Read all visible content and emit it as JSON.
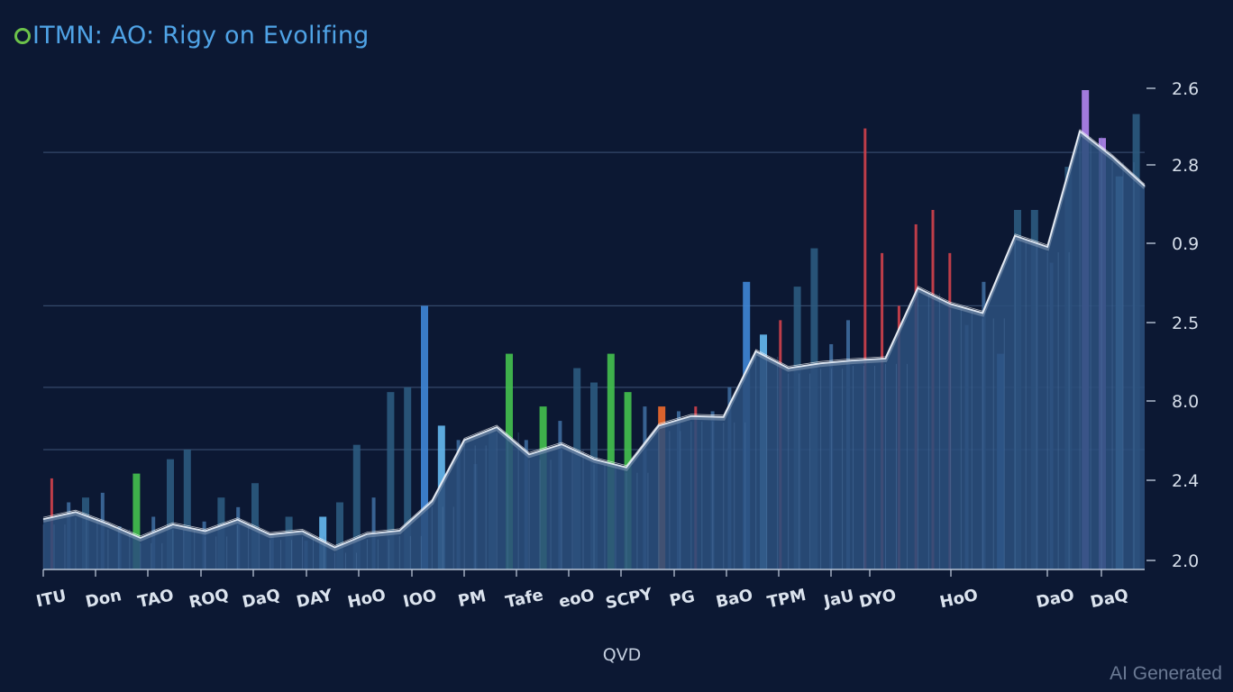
{
  "title": "ITMN: AO: Rigy on Evolifing",
  "watermark": "AI Generated",
  "chart_data": {
    "type": "bar",
    "title": "ITMN: AO: Rigy on Evolifing",
    "xlabel": "QVD",
    "ylabel": "",
    "y_tick_labels": [
      "2.6",
      "2.8",
      "0.9",
      "2.5",
      "8.0",
      "2.4",
      "2.0"
    ],
    "ylim": [
      0,
      100
    ],
    "x_tick_labels": [
      "ITU",
      "Don",
      "TAO",
      "ROQ",
      "DaQ",
      "DAY",
      "HoO",
      "IOO",
      "PM",
      "Tafe",
      "eoO",
      "SCPY",
      "PG",
      "BaO",
      "TPM",
      "JaU",
      "DYO",
      "HoO",
      "DaO",
      "DaQ"
    ],
    "gridlines": [
      25,
      38,
      55,
      87
    ],
    "colors": {
      "background": "#0c1833",
      "area_fill": "#2b4e7c",
      "bar_fill": "#3d6a9c",
      "bar_tall": "#2b5a7e",
      "line": "#dfe7f2",
      "accent_red": "#d2414b",
      "accent_green": "#44c14e",
      "accent_blue": "#3f86d6",
      "accent_orange": "#ef6a2c",
      "accent_cyan": "#65b9ef",
      "accent_purple": "#b385ef"
    },
    "trend_series": {
      "name": "trend",
      "values": [
        10.5,
        12.0,
        9.5,
        6.6,
        9.4,
        8.0,
        10.4,
        7.3,
        8.0,
        4.6,
        7.4,
        8.1,
        14.2,
        27.0,
        29.7,
        24.0,
        26.1,
        23.0,
        21.3,
        30.0,
        32.0,
        31.8,
        45.5,
        42.0,
        43.0,
        43.6,
        44.0,
        58.7,
        55.4,
        53.5,
        69.6,
        67.3,
        91.4,
        86.1,
        80.0
      ]
    },
    "bars": [
      {
        "value": 19,
        "color": "red"
      },
      {
        "value": 14,
        "color": "bar"
      },
      {
        "value": 15,
        "color": "tall"
      },
      {
        "value": 16,
        "color": "bar"
      },
      {
        "value": 9,
        "color": "bar"
      },
      {
        "value": 20,
        "color": "green"
      },
      {
        "value": 11,
        "color": "bar"
      },
      {
        "value": 23,
        "color": "tall"
      },
      {
        "value": 25,
        "color": "tall"
      },
      {
        "value": 10,
        "color": "bar"
      },
      {
        "value": 15,
        "color": "tall"
      },
      {
        "value": 13,
        "color": "bar"
      },
      {
        "value": 18,
        "color": "tall"
      },
      {
        "value": 7,
        "color": "bar"
      },
      {
        "value": 11,
        "color": "tall"
      },
      {
        "value": 6,
        "color": "bar"
      },
      {
        "value": 11,
        "color": "cyan"
      },
      {
        "value": 14,
        "color": "tall"
      },
      {
        "value": 26,
        "color": "tall"
      },
      {
        "value": 15,
        "color": "bar"
      },
      {
        "value": 37,
        "color": "tall"
      },
      {
        "value": 38,
        "color": "tall"
      },
      {
        "value": 55,
        "color": "blue"
      },
      {
        "value": 30,
        "color": "cyan"
      },
      {
        "value": 27,
        "color": "bar"
      },
      {
        "value": 22,
        "color": "bar"
      },
      {
        "value": 29,
        "color": "tall"
      },
      {
        "value": 45,
        "color": "green"
      },
      {
        "value": 27,
        "color": "bar"
      },
      {
        "value": 34,
        "color": "green"
      },
      {
        "value": 31,
        "color": "bar"
      },
      {
        "value": 42,
        "color": "tall"
      },
      {
        "value": 39,
        "color": "tall"
      },
      {
        "value": 45,
        "color": "green"
      },
      {
        "value": 37,
        "color": "green"
      },
      {
        "value": 34,
        "color": "bar"
      },
      {
        "value": 34,
        "color": "orange"
      },
      {
        "value": 33,
        "color": "bar"
      },
      {
        "value": 34,
        "color": "red"
      },
      {
        "value": 33,
        "color": "bar"
      },
      {
        "value": 38,
        "color": "bar"
      },
      {
        "value": 60,
        "color": "blue"
      },
      {
        "value": 49,
        "color": "cyan"
      },
      {
        "value": 52,
        "color": "red"
      },
      {
        "value": 59,
        "color": "tall"
      },
      {
        "value": 67,
        "color": "tall"
      },
      {
        "value": 47,
        "color": "bar"
      },
      {
        "value": 52,
        "color": "bar"
      },
      {
        "value": 92,
        "color": "red"
      },
      {
        "value": 66,
        "color": "red"
      },
      {
        "value": 55,
        "color": "red"
      },
      {
        "value": 72,
        "color": "red"
      },
      {
        "value": 75,
        "color": "red"
      },
      {
        "value": 66,
        "color": "red"
      },
      {
        "value": 51,
        "color": "bar"
      },
      {
        "value": 60,
        "color": "bar"
      },
      {
        "value": 45,
        "color": "blue"
      },
      {
        "value": 75,
        "color": "tall"
      },
      {
        "value": 75,
        "color": "tall"
      },
      {
        "value": 64,
        "color": "bar"
      },
      {
        "value": 84,
        "color": "tall"
      },
      {
        "value": 100,
        "color": "purple"
      },
      {
        "value": 90,
        "color": "purple"
      },
      {
        "value": 82,
        "color": "cyan"
      },
      {
        "value": 95,
        "color": "tall"
      }
    ]
  }
}
